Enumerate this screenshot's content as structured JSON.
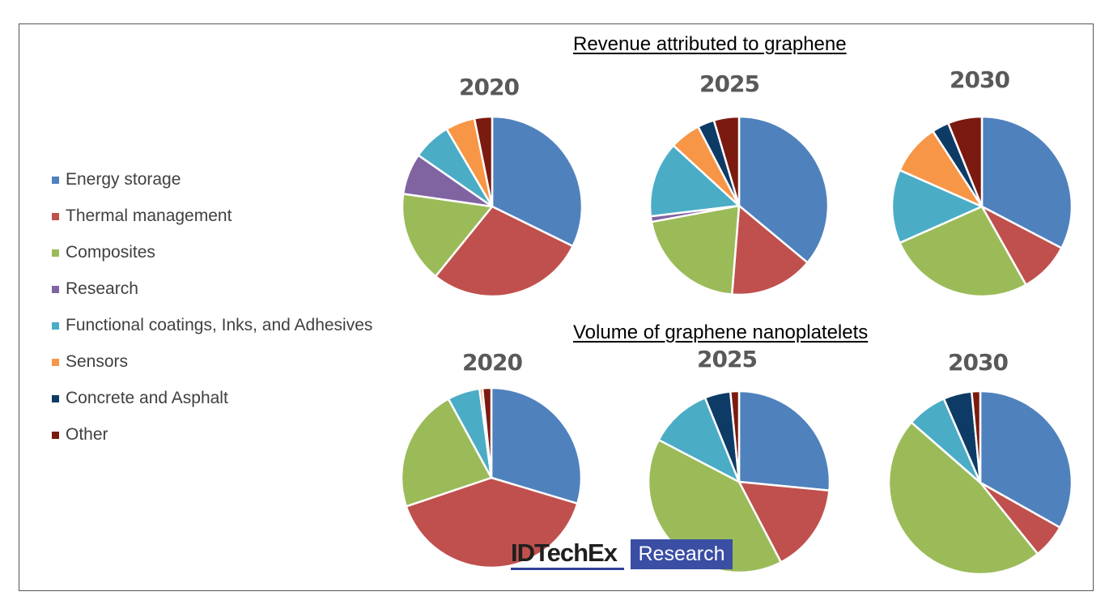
{
  "colors": {
    "Energy storage": "#4f81bd",
    "Thermal management": "#c0504d",
    "Composites": "#9bbb59",
    "Research": "#8064a2",
    "Functional coatings, Inks, and Adhesives": "#4bacc6",
    "Sensors": "#f79646",
    "Concrete and Asphalt": "#0d3b66",
    "Other": "#7b1a10"
  },
  "legend": [
    "Energy storage",
    "Thermal management",
    "Composites",
    "Research",
    "Functional coatings, Inks, and Adhesives",
    "Sensors",
    "Concrete and Asphalt",
    "Other"
  ],
  "titles": {
    "revenue": "Revenue  attributed  to graphene",
    "volume": "Volume  of  graphene  nanoplatelets"
  },
  "logo": {
    "brand": "IDTechEx",
    "tagline": "Research"
  },
  "chart_data": [
    {
      "type": "pie",
      "group": "Revenue  attributed  to graphene",
      "title": "2020",
      "categories": [
        "Energy storage",
        "Thermal management",
        "Composites",
        "Research",
        "Functional coatings, Inks, and Adhesives",
        "Sensors",
        "Concrete and Asphalt",
        "Other"
      ],
      "values": [
        30.5,
        27,
        15.5,
        7,
        6.5,
        5,
        0,
        3
      ]
    },
    {
      "type": "pie",
      "group": "Revenue  attributed  to graphene",
      "title": "2025",
      "categories": [
        "Energy storage",
        "Thermal management",
        "Composites",
        "Research",
        "Functional coatings, Inks, and Adhesives",
        "Sensors",
        "Concrete and Asphalt",
        "Other"
      ],
      "values": [
        35.5,
        15,
        20.5,
        1,
        13.5,
        5.5,
        3,
        4.5
      ]
    },
    {
      "type": "pie",
      "group": "Revenue  attributed  to graphene",
      "title": "2030",
      "categories": [
        "Energy storage",
        "Thermal management",
        "Composites",
        "Research",
        "Functional coatings, Inks, and Adhesives",
        "Sensors",
        "Concrete and Asphalt",
        "Other"
      ],
      "values": [
        32,
        9,
        26,
        0,
        13,
        9,
        3,
        6
      ]
    },
    {
      "type": "pie",
      "group": "Volume  of  graphene  nanoplatelets",
      "title": "2020",
      "categories": [
        "Energy storage",
        "Thermal management",
        "Composites",
        "Research",
        "Functional coatings, Inks, and Adhesives",
        "Sensors",
        "Concrete and Asphalt",
        "Other"
      ],
      "values": [
        28,
        38,
        21,
        0,
        5.5,
        0.5,
        0,
        1.5
      ]
    },
    {
      "type": "pie",
      "group": "Volume  of  graphene  nanoplatelets",
      "title": "2025",
      "categories": [
        "Energy storage",
        "Thermal management",
        "Composites",
        "Research",
        "Functional coatings, Inks, and Adhesives",
        "Sensors",
        "Concrete and Asphalt",
        "Other"
      ],
      "values": [
        26,
        15.5,
        39.5,
        0,
        11,
        0,
        4.5,
        1.5
      ]
    },
    {
      "type": "pie",
      "group": "Volume  of  graphene  nanoplatelets",
      "title": "2030",
      "categories": [
        "Energy storage",
        "Thermal management",
        "Composites",
        "Research",
        "Functional coatings, Inks, and Adhesives",
        "Sensors",
        "Concrete and Asphalt",
        "Other"
      ],
      "values": [
        33,
        6,
        47,
        0,
        7,
        0,
        5,
        1.5
      ]
    }
  ]
}
